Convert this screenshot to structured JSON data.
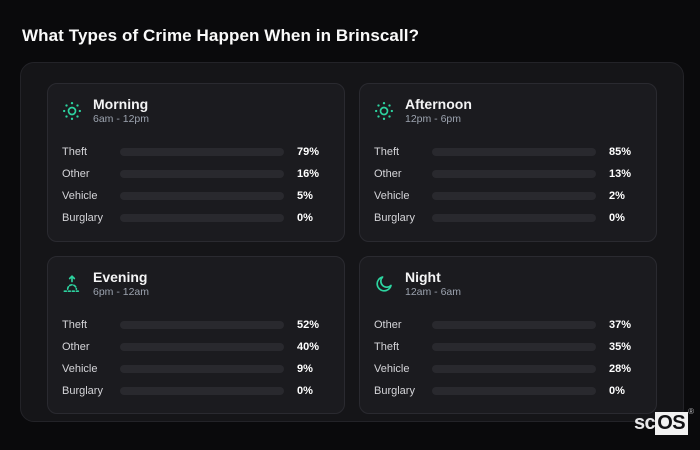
{
  "page": {
    "title": "What Types of Crime Happen When in Brinscall?",
    "watermark": {
      "prefix": "sc",
      "brand": "OS",
      "registered": "®"
    }
  },
  "colors": {
    "background": "#0a0a0c",
    "container": "#151518",
    "card": "#1b1b1f",
    "card_border": "#2a2a30",
    "track": "#29292e",
    "icon_accent": "#2dd4a0",
    "theft_bar": "#a855f7",
    "other_bar": "#64748b",
    "vehicle_bar": "#3b82f6",
    "title_text": "#fafafa",
    "muted_text": "#9ca3af"
  },
  "panels": [
    {
      "title": "Morning",
      "subtitle": "6am - 12pm",
      "icon": "sun-icon",
      "rows": [
        {
          "label": "Theft",
          "value": 79,
          "display": "79%",
          "color": "#a855f7"
        },
        {
          "label": "Other",
          "value": 16,
          "display": "16%",
          "color": "#64748b"
        },
        {
          "label": "Vehicle",
          "value": 5,
          "display": "5%",
          "color": "#3b82f6"
        },
        {
          "label": "Burglary",
          "value": 0,
          "display": "0%",
          "color": "#a855f7"
        }
      ]
    },
    {
      "title": "Afternoon",
      "subtitle": "12pm - 6pm",
      "icon": "sun-icon",
      "rows": [
        {
          "label": "Theft",
          "value": 85,
          "display": "85%",
          "color": "#a855f7"
        },
        {
          "label": "Other",
          "value": 13,
          "display": "13%",
          "color": "#64748b"
        },
        {
          "label": "Vehicle",
          "value": 2,
          "display": "2%",
          "color": "#3b82f6"
        },
        {
          "label": "Burglary",
          "value": 0,
          "display": "0%",
          "color": "#a855f7"
        }
      ]
    },
    {
      "title": "Evening",
      "subtitle": "6pm - 12am",
      "icon": "sunrise-icon",
      "rows": [
        {
          "label": "Theft",
          "value": 52,
          "display": "52%",
          "color": "#a855f7"
        },
        {
          "label": "Other",
          "value": 40,
          "display": "40%",
          "color": "#64748b"
        },
        {
          "label": "Vehicle",
          "value": 9,
          "display": "9%",
          "color": "#3b82f6"
        },
        {
          "label": "Burglary",
          "value": 0,
          "display": "0%",
          "color": "#a855f7"
        }
      ]
    },
    {
      "title": "Night",
      "subtitle": "12am - 6am",
      "icon": "moon-icon",
      "rows": [
        {
          "label": "Other",
          "value": 37,
          "display": "37%",
          "color": "#64748b"
        },
        {
          "label": "Theft",
          "value": 35,
          "display": "35%",
          "color": "#a855f7"
        },
        {
          "label": "Vehicle",
          "value": 28,
          "display": "28%",
          "color": "#3b82f6"
        },
        {
          "label": "Burglary",
          "value": 0,
          "display": "0%",
          "color": "#64748b"
        }
      ]
    }
  ],
  "chart_data": [
    {
      "type": "bar",
      "orientation": "horizontal",
      "title": "Morning",
      "subtitle": "6am - 12pm",
      "categories": [
        "Theft",
        "Other",
        "Vehicle",
        "Burglary"
      ],
      "values": [
        79,
        16,
        5,
        0
      ],
      "unit": "%",
      "xlim": [
        0,
        100
      ],
      "grid": false,
      "legend": false
    },
    {
      "type": "bar",
      "orientation": "horizontal",
      "title": "Afternoon",
      "subtitle": "12pm - 6pm",
      "categories": [
        "Theft",
        "Other",
        "Vehicle",
        "Burglary"
      ],
      "values": [
        85,
        13,
        2,
        0
      ],
      "unit": "%",
      "xlim": [
        0,
        100
      ],
      "grid": false,
      "legend": false
    },
    {
      "type": "bar",
      "orientation": "horizontal",
      "title": "Evening",
      "subtitle": "6pm - 12am",
      "categories": [
        "Theft",
        "Other",
        "Vehicle",
        "Burglary"
      ],
      "values": [
        52,
        40,
        9,
        0
      ],
      "unit": "%",
      "xlim": [
        0,
        100
      ],
      "grid": false,
      "legend": false
    },
    {
      "type": "bar",
      "orientation": "horizontal",
      "title": "Night",
      "subtitle": "12am - 6am",
      "categories": [
        "Other",
        "Theft",
        "Vehicle",
        "Burglary"
      ],
      "values": [
        37,
        35,
        28,
        0
      ],
      "unit": "%",
      "xlim": [
        0,
        100
      ],
      "grid": false,
      "legend": false
    }
  ]
}
